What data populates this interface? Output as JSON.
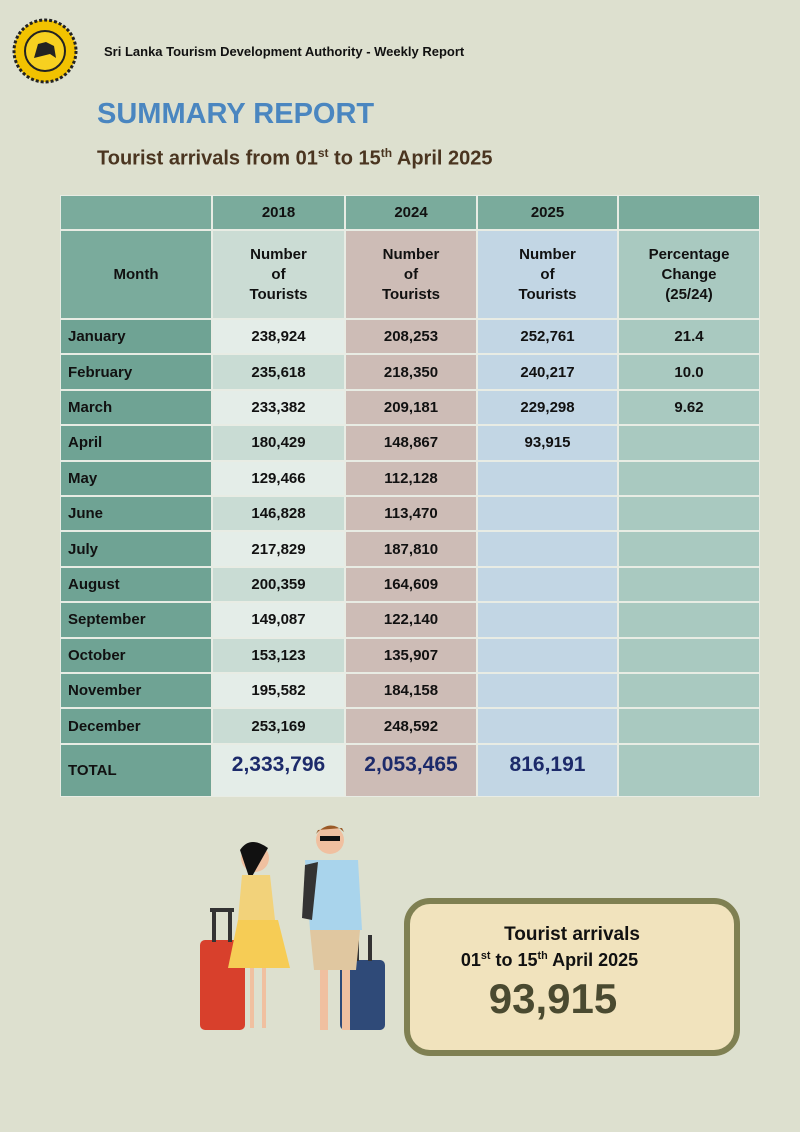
{
  "header": {
    "org": "Sri Lanka Tourism Development Authority - Weekly Report"
  },
  "title": "SUMMARY REPORT",
  "subtitle": [
    "Tourist arrivals from 01",
    "st",
    " to 15",
    "th",
    " April 2025"
  ],
  "table": {
    "month_header": "Month",
    "years": [
      "2018",
      "2024",
      "2025"
    ],
    "number_label": [
      "Number",
      "of",
      "Tourists"
    ],
    "pct_label": [
      "Percentage",
      "Change",
      "(25/24)"
    ],
    "rows": [
      [
        "January",
        "238,924",
        "208,253",
        "252,761",
        "21.4"
      ],
      [
        "February",
        "235,618",
        "218,350",
        "240,217",
        "10.0"
      ],
      [
        "March",
        "233,382",
        "209,181",
        "229,298",
        "9.62"
      ],
      [
        "April",
        "180,429",
        "148,867",
        "93,915",
        null
      ],
      [
        "May",
        "129,466",
        "112,128",
        null,
        null
      ],
      [
        "June",
        "146,828",
        "113,470",
        null,
        null
      ],
      [
        "July",
        "217,829",
        "187,810",
        null,
        null
      ],
      [
        "August",
        "200,359",
        "164,609",
        null,
        null
      ],
      [
        "September",
        "149,087",
        "122,140",
        null,
        null
      ],
      [
        "October",
        "153,123",
        "135,907",
        null,
        null
      ],
      [
        "November",
        "195,582",
        "184,158",
        null,
        null
      ],
      [
        "December",
        "253,169",
        "248,592",
        null,
        null
      ]
    ],
    "total": [
      "TOTAL",
      "2,333,796",
      "2,053,465",
      "816,191",
      null
    ]
  },
  "box": {
    "title": "Tourist arrivals",
    "period": [
      "01",
      "st",
      " to 15",
      "th",
      " April 2025"
    ],
    "value": "93,915"
  }
}
